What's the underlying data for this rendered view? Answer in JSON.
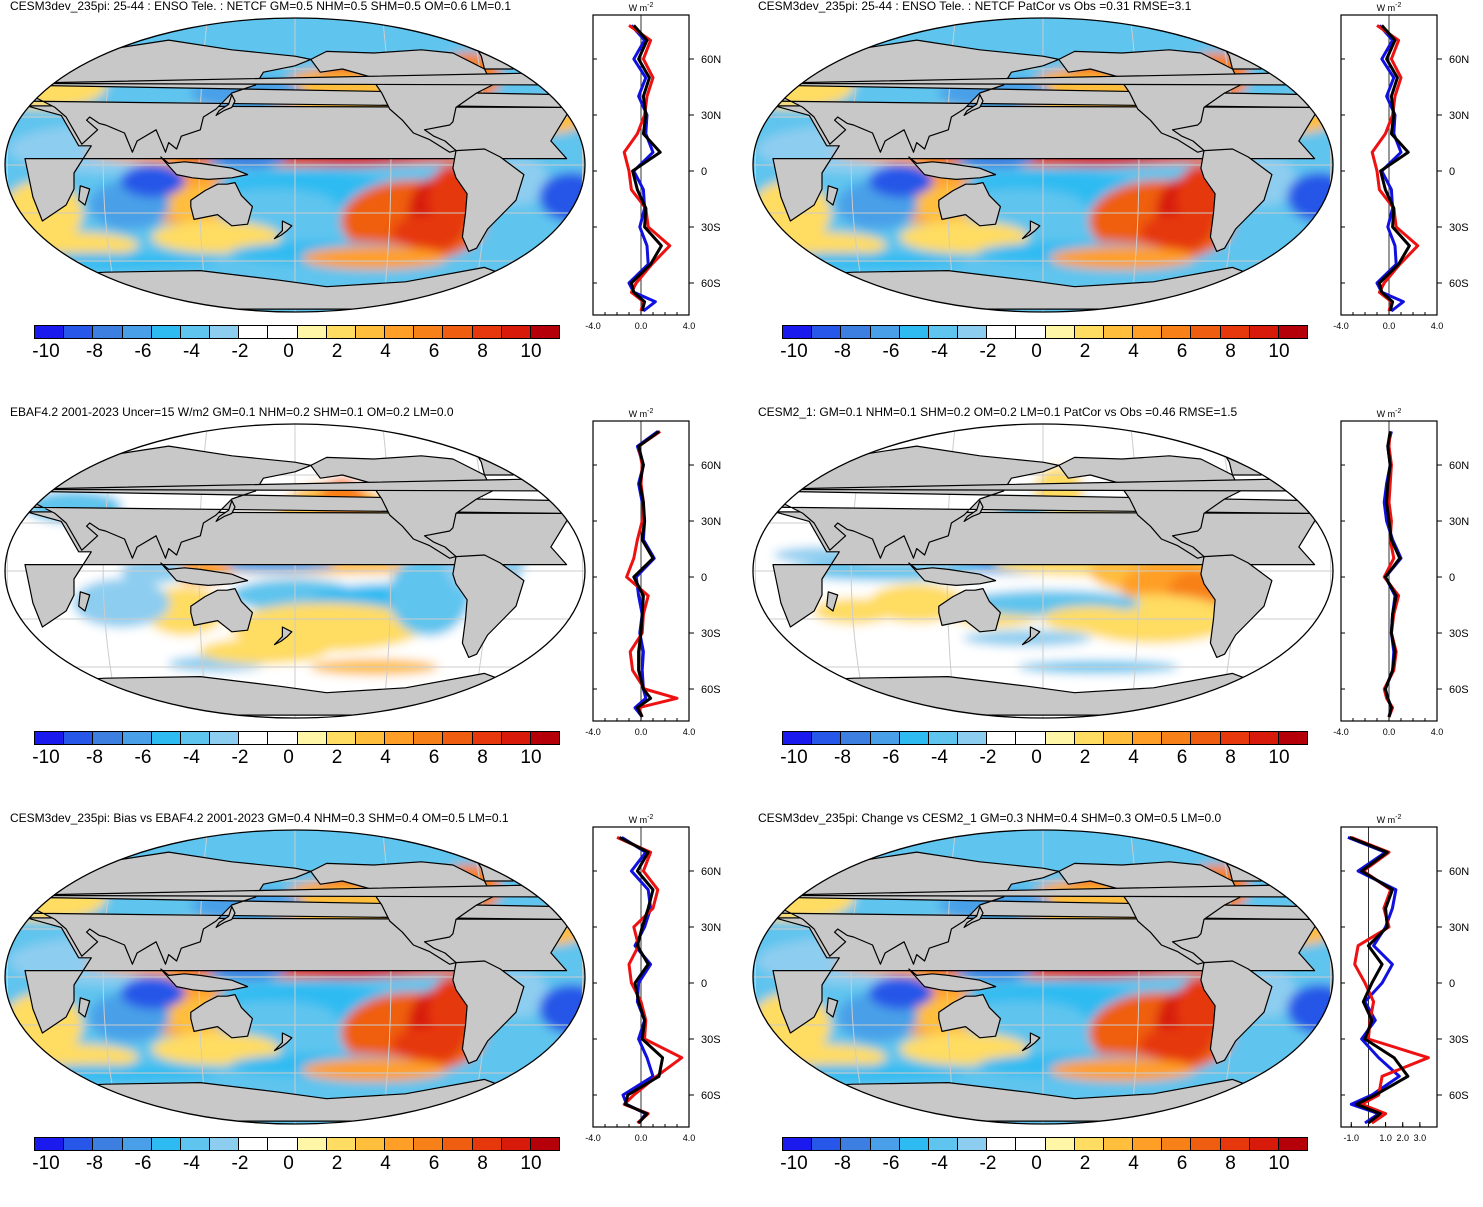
{
  "chart_data": [
    {
      "type": "heatmap",
      "title": "CESM3dev_235pi: 25-44 : ENSO Tele. : NETCF GM=0.5 NHM=0.5 SHM=0.5 OM=0.6 LM=0.1",
      "map_style": "strong",
      "colorbar_ticks": [
        "-10",
        "-8",
        "-6",
        "-4",
        "-2",
        "0",
        "2",
        "4",
        "6",
        "8",
        "10"
      ],
      "profile": {
        "units": "W m-2",
        "xlim": [
          -4.0,
          4.0
        ],
        "xticks": [
          "-4.0",
          "0.0",
          "4.0"
        ],
        "yticks": [
          "60N",
          "30N",
          "0",
          "30S",
          "60S"
        ],
        "series": [
          {
            "name": "blue",
            "color": "#1010e0",
            "lat": [
              78,
              70,
              60,
              50,
              40,
              30,
              20,
              10,
              0,
              -10,
              -20,
              -30,
              -40,
              -50,
              -60,
              -65,
              -70,
              -75
            ],
            "values": [
              -0.8,
              0.3,
              -0.6,
              0.4,
              -0.2,
              0.5,
              0.4,
              1.0,
              -0.6,
              0.2,
              0.3,
              -0.1,
              0.5,
              0.6,
              -1.0,
              -0.6,
              1.2,
              0.2
            ]
          },
          {
            "name": "red",
            "color": "#ee1111",
            "lat": [
              78,
              70,
              60,
              50,
              40,
              30,
              20,
              10,
              0,
              -10,
              -20,
              -30,
              -40,
              -50,
              -60,
              -65,
              -70,
              -75
            ],
            "values": [
              -1.0,
              0.8,
              0.2,
              1.0,
              0.5,
              0.3,
              -0.3,
              -1.4,
              -1.0,
              -0.8,
              0.4,
              0.6,
              2.4,
              0.9,
              -0.4,
              -0.8,
              0.2,
              0.0
            ]
          },
          {
            "name": "black",
            "color": "#000000",
            "lat": [
              78,
              70,
              60,
              50,
              40,
              30,
              20,
              10,
              0,
              -10,
              -20,
              -30,
              -40,
              -50,
              -60,
              -65,
              -70,
              -75
            ],
            "values": [
              -0.6,
              0.5,
              -0.2,
              0.7,
              0.2,
              0.4,
              0.2,
              1.6,
              -0.7,
              -0.3,
              0.4,
              0.3,
              1.7,
              0.8,
              -0.8,
              -0.6,
              0.3,
              0.1
            ]
          }
        ]
      }
    },
    {
      "type": "heatmap",
      "title": "CESM3dev_235pi: 25-44 : ENSO Tele. : NETCF PatCor vs Obs =0.31 RMSE=3.1",
      "map_style": "strong",
      "colorbar_ticks": [
        "-10",
        "-8",
        "-6",
        "-4",
        "-2",
        "0",
        "2",
        "4",
        "6",
        "8",
        "10"
      ],
      "profile": {
        "units": "W m-2",
        "xlim": [
          -4.0,
          4.0
        ],
        "xticks": [
          "-4.0",
          "0.0",
          "4.0"
        ],
        "yticks": [
          "60N",
          "30N",
          "0",
          "30S",
          "60S"
        ],
        "series": [
          {
            "name": "blue",
            "color": "#1010e0",
            "lat": [
              78,
              70,
              60,
              50,
              40,
              30,
              20,
              10,
              0,
              -10,
              -20,
              -30,
              -40,
              -50,
              -60,
              -65,
              -70,
              -75
            ],
            "values": [
              -0.8,
              0.3,
              -0.6,
              0.4,
              -0.2,
              0.5,
              0.4,
              1.0,
              -0.6,
              0.2,
              0.3,
              -0.1,
              0.5,
              0.6,
              -1.0,
              -0.6,
              1.2,
              0.2
            ]
          },
          {
            "name": "red",
            "color": "#ee1111",
            "lat": [
              78,
              70,
              60,
              50,
              40,
              30,
              20,
              10,
              0,
              -10,
              -20,
              -30,
              -40,
              -50,
              -60,
              -65,
              -70,
              -75
            ],
            "values": [
              -1.0,
              0.8,
              0.2,
              1.0,
              0.5,
              0.3,
              -0.3,
              -1.4,
              -1.0,
              -0.8,
              0.4,
              0.6,
              2.4,
              0.9,
              -0.4,
              -0.8,
              0.2,
              0.0
            ]
          },
          {
            "name": "black",
            "color": "#000000",
            "lat": [
              78,
              70,
              60,
              50,
              40,
              30,
              20,
              10,
              0,
              -10,
              -20,
              -30,
              -40,
              -50,
              -60,
              -65,
              -70,
              -75
            ],
            "values": [
              -0.6,
              0.5,
              -0.2,
              0.7,
              0.2,
              0.4,
              0.2,
              1.6,
              -0.7,
              -0.3,
              0.4,
              0.3,
              1.7,
              0.8,
              -0.8,
              -0.6,
              0.3,
              0.1
            ]
          }
        ]
      }
    },
    {
      "type": "heatmap",
      "title": "EBAF4.2 2001-2023 Uncer=15 W/m2 GM=0.1 NHM=0.2 SHM=0.1 OM=0.2 LM=0.0",
      "map_style": "medium",
      "colorbar_ticks": [
        "-10",
        "-8",
        "-6",
        "-4",
        "-2",
        "0",
        "2",
        "4",
        "6",
        "8",
        "10"
      ],
      "profile": {
        "units": "W m-2",
        "xlim": [
          -4.0,
          4.0
        ],
        "xticks": [
          "-4.0",
          "0.0",
          "4.0"
        ],
        "yticks": [
          "60N",
          "30N",
          "0",
          "30S",
          "60S"
        ],
        "series": [
          {
            "name": "blue",
            "color": "#1010e0",
            "lat": [
              78,
              70,
              60,
              50,
              40,
              30,
              20,
              10,
              0,
              -10,
              -20,
              -30,
              -40,
              -50,
              -60,
              -65,
              -70,
              -75
            ],
            "values": [
              1.4,
              -0.3,
              0.2,
              -0.2,
              0.1,
              0.3,
              0.2,
              1.1,
              -0.4,
              -0.2,
              0.1,
              -0.1,
              0.2,
              0.1,
              0.2,
              0.4,
              -0.5,
              0.1
            ]
          },
          {
            "name": "red",
            "color": "#ee1111",
            "lat": [
              78,
              70,
              60,
              50,
              40,
              30,
              20,
              10,
              0,
              -10,
              -20,
              -30,
              -40,
              -50,
              -60,
              -65,
              -70,
              -75
            ],
            "values": [
              1.6,
              -0.2,
              0.1,
              0.0,
              0.2,
              0.1,
              -0.3,
              -0.6,
              -1.2,
              0.6,
              0.2,
              0.1,
              -0.9,
              -0.7,
              0.3,
              3.0,
              -0.2,
              0.1
            ]
          },
          {
            "name": "black",
            "color": "#000000",
            "lat": [
              78,
              70,
              60,
              50,
              40,
              30,
              20,
              10,
              0,
              -10,
              -20,
              -30,
              -40,
              -50,
              -60,
              -65,
              -70,
              -75
            ],
            "values": [
              1.5,
              -0.2,
              0.2,
              -0.1,
              0.2,
              0.3,
              0.1,
              1.0,
              -0.6,
              0.2,
              0.1,
              0.0,
              -0.2,
              -0.2,
              0.2,
              0.8,
              -0.3,
              0.1
            ]
          }
        ]
      }
    },
    {
      "type": "heatmap",
      "title": "CESM2_1: GM=0.1 NHM=0.1 SHM=0.2 OM=0.2 LM=0.1 PatCor vs Obs =0.46 RMSE=1.5",
      "map_style": "weak",
      "colorbar_ticks": [
        "-10",
        "-8",
        "-6",
        "-4",
        "-2",
        "0",
        "2",
        "4",
        "6",
        "8",
        "10"
      ],
      "profile": {
        "units": "W m-2",
        "xlim": [
          -4.0,
          4.0
        ],
        "xticks": [
          "-4.0",
          "0.0",
          "4.0"
        ],
        "yticks": [
          "60N",
          "30N",
          "0",
          "30S",
          "60S"
        ],
        "series": [
          {
            "name": "blue",
            "color": "#1010e0",
            "lat": [
              78,
              70,
              60,
              50,
              40,
              30,
              20,
              10,
              0,
              -10,
              -20,
              -30,
              -40,
              -50,
              -60,
              -65,
              -70,
              -75
            ],
            "values": [
              0.2,
              -0.1,
              0.1,
              -0.2,
              -0.4,
              -0.2,
              0.3,
              1.0,
              -0.3,
              0.5,
              0.3,
              0.2,
              0.4,
              0.3,
              -0.3,
              -0.1,
              0.2,
              0.0
            ]
          },
          {
            "name": "red",
            "color": "#ee1111",
            "lat": [
              78,
              70,
              60,
              50,
              40,
              30,
              20,
              10,
              0,
              -10,
              -20,
              -30,
              -40,
              -50,
              -60,
              -65,
              -70,
              -75
            ],
            "values": [
              0.1,
              0.0,
              0.2,
              0.1,
              0.0,
              0.2,
              0.1,
              0.4,
              -0.4,
              0.8,
              0.4,
              0.2,
              0.6,
              0.4,
              -0.4,
              -0.2,
              0.3,
              0.0
            ]
          },
          {
            "name": "black",
            "color": "#000000",
            "lat": [
              78,
              70,
              60,
              50,
              40,
              30,
              20,
              10,
              0,
              -10,
              -20,
              -30,
              -40,
              -50,
              -60,
              -65,
              -70,
              -75
            ],
            "values": [
              0.1,
              -0.1,
              0.1,
              -0.1,
              -0.2,
              0.0,
              0.2,
              0.9,
              -0.3,
              0.6,
              0.3,
              0.2,
              0.5,
              0.3,
              -0.3,
              -0.1,
              0.2,
              0.0
            ]
          }
        ]
      }
    },
    {
      "type": "heatmap",
      "title": "CESM3dev_235pi: Bias vs EBAF4.2 2001-2023 GM=0.4 NHM=0.3 SHM=0.4 OM=0.5 LM=0.1",
      "map_style": "strong",
      "colorbar_ticks": [
        "-10",
        "-8",
        "-6",
        "-4",
        "-2",
        "0",
        "2",
        "4",
        "6",
        "8",
        "10"
      ],
      "profile": {
        "units": "W m-2",
        "xlim": [
          -4.0,
          4.0
        ],
        "xticks": [
          "-4.0",
          "0.0",
          "4.0"
        ],
        "yticks": [
          "60N",
          "30N",
          "0",
          "30S",
          "60S"
        ],
        "series": [
          {
            "name": "blue",
            "color": "#1010e0",
            "lat": [
              78,
              70,
              60,
              50,
              40,
              30,
              20,
              10,
              0,
              -10,
              -20,
              -30,
              -40,
              -50,
              -60,
              -65,
              -70,
              -75
            ],
            "values": [
              -1.6,
              0.4,
              -0.8,
              0.6,
              0.8,
              0.3,
              -0.5,
              0.8,
              -0.2,
              -0.3,
              0.3,
              -0.2,
              0.5,
              1.0,
              -1.5,
              -1.2,
              0.4,
              -0.2
            ]
          },
          {
            "name": "red",
            "color": "#ee1111",
            "lat": [
              78,
              70,
              60,
              50,
              40,
              30,
              20,
              10,
              0,
              -10,
              -20,
              -30,
              -40,
              -50,
              -60,
              -65,
              -70,
              -75
            ],
            "values": [
              -2.0,
              0.8,
              0.2,
              1.4,
              1.0,
              -0.6,
              -0.2,
              -1.0,
              -0.8,
              0.0,
              0.4,
              0.3,
              3.4,
              1.3,
              -0.6,
              -1.4,
              0.6,
              -0.3
            ]
          },
          {
            "name": "black",
            "color": "#000000",
            "lat": [
              78,
              70,
              60,
              50,
              40,
              30,
              20,
              10,
              0,
              -10,
              -20,
              -30,
              -40,
              -50,
              -60,
              -65,
              -70,
              -75
            ],
            "values": [
              -1.8,
              0.6,
              -0.3,
              1.0,
              0.6,
              0.1,
              -0.3,
              0.6,
              -0.5,
              -0.2,
              0.3,
              0.1,
              1.8,
              1.5,
              -1.1,
              -1.3,
              0.5,
              -0.2
            ]
          }
        ]
      }
    },
    {
      "type": "heatmap",
      "title": "CESM3dev_235pi: Change vs CESM2_1 GM=0.3 NHM=0.4 SHM=0.3 OM=0.5 LM=0.0",
      "map_style": "strong",
      "colorbar_ticks": [
        "-10",
        "-8",
        "-6",
        "-4",
        "-2",
        "0",
        "2",
        "4",
        "6",
        "8",
        "10"
      ],
      "profile": {
        "units": "W m-2",
        "xlim": [
          -1.6,
          4.0
        ],
        "xticks": [
          "-1.0",
          "1.0",
          "2.0",
          "3.0"
        ],
        "yticks": [
          "60N",
          "30N",
          "0",
          "30S",
          "60S"
        ],
        "series": [
          {
            "name": "blue",
            "color": "#1010e0",
            "lat": [
              78,
              70,
              60,
              50,
              40,
              30,
              20,
              10,
              0,
              -10,
              -20,
              -30,
              -40,
              -50,
              -60,
              -65,
              -70,
              -75
            ],
            "values": [
              -1.2,
              1.0,
              -0.6,
              1.6,
              1.4,
              1.0,
              0.3,
              1.4,
              0.8,
              -0.2,
              0.4,
              -0.4,
              0.6,
              1.8,
              0.2,
              -1.0,
              0.6,
              -0.2
            ]
          },
          {
            "name": "red",
            "color": "#ee1111",
            "lat": [
              78,
              70,
              60,
              50,
              40,
              30,
              20,
              10,
              0,
              -10,
              -20,
              -30,
              -40,
              -50,
              -60,
              -65,
              -70,
              -75
            ],
            "values": [
              -1.0,
              1.2,
              -0.3,
              1.3,
              0.9,
              1.2,
              -0.6,
              -0.8,
              -0.2,
              0.3,
              0.1,
              0.0,
              3.5,
              0.8,
              0.6,
              -0.4,
              1.0,
              0.2
            ]
          },
          {
            "name": "black",
            "color": "#000000",
            "lat": [
              78,
              70,
              60,
              50,
              40,
              30,
              20,
              10,
              0,
              -10,
              -20,
              -30,
              -40,
              -50,
              -60,
              -65,
              -70,
              -75
            ],
            "values": [
              -1.1,
              1.1,
              -0.4,
              1.4,
              1.0,
              1.1,
              0.0,
              0.8,
              0.2,
              -0.3,
              0.2,
              -0.2,
              1.5,
              2.3,
              0.4,
              -0.7,
              0.7,
              0.0
            ]
          }
        ]
      }
    }
  ],
  "colors": {
    "palette": [
      "#1a1aef",
      "#2757e8",
      "#3c7fe0",
      "#4aa0e8",
      "#2dbbf2",
      "#5fc4ee",
      "#8dcdf0",
      "#ffffff",
      "#ffffff",
      "#fff6a8",
      "#ffdc62",
      "#ffbe3c",
      "#ff9f28",
      "#f88018",
      "#ef5e10",
      "#e6380c",
      "#d71a0a",
      "#b5000a"
    ],
    "land": "#c8c8c8",
    "grid": "#cccccc"
  }
}
